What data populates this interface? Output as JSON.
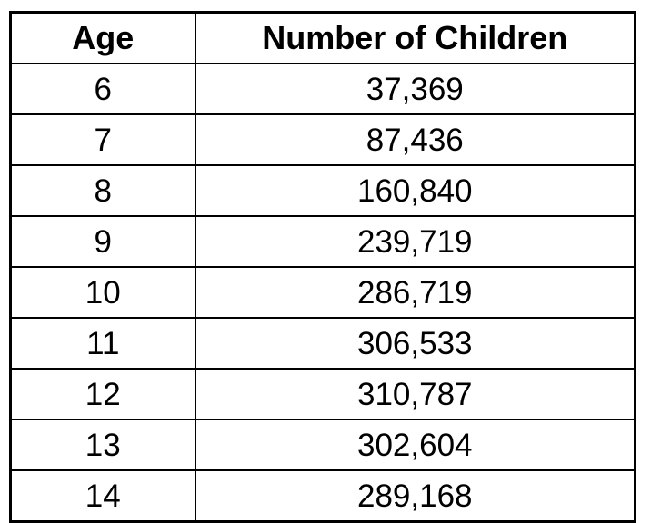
{
  "colors": {
    "border": "#000000",
    "background": "#ffffff",
    "text": "#000000"
  },
  "table": {
    "columns": [
      "Age",
      "Number of Children"
    ],
    "rows": [
      {
        "age": "6",
        "children": "37,369"
      },
      {
        "age": "7",
        "children": "87,436"
      },
      {
        "age": "8",
        "children": "160,840"
      },
      {
        "age": "9",
        "children": "239,719"
      },
      {
        "age": "10",
        "children": "286,719"
      },
      {
        "age": "11",
        "children": "306,533"
      },
      {
        "age": "12",
        "children": "310,787"
      },
      {
        "age": "13",
        "children": "302,604"
      },
      {
        "age": "14",
        "children": "289,168"
      }
    ]
  },
  "chart_data": {
    "type": "table",
    "title": "",
    "columns": [
      "Age",
      "Number of Children"
    ],
    "categories": [
      6,
      7,
      8,
      9,
      10,
      11,
      12,
      13,
      14
    ],
    "series": [
      {
        "name": "Number of Children",
        "values": [
          37369,
          87436,
          160840,
          239719,
          286719,
          306533,
          310787,
          302604,
          289168
        ]
      }
    ],
    "layout": {
      "grid": true,
      "header_bold": true,
      "cell_alignment": "center",
      "border_color": "#000000"
    }
  }
}
